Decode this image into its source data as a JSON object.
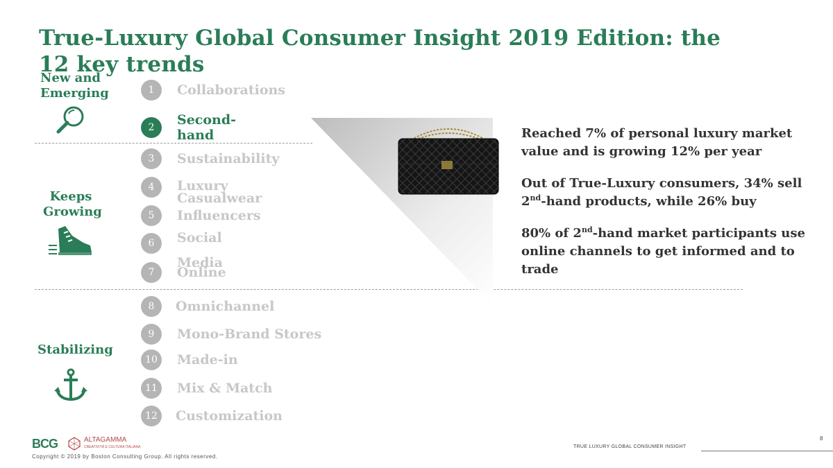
{
  "title": "True-Luxury Global Consumer Insight 2019 Edition: the 12 key trends",
  "categories": [
    {
      "label": "New and Emerging",
      "icon": "magnifier-icon"
    },
    {
      "label": "Keeps Growing",
      "icon": "sneaker-icon"
    },
    {
      "label": "Stabilizing",
      "icon": "anchor-icon"
    }
  ],
  "trends": [
    {
      "num": "1",
      "label": "Collaborations"
    },
    {
      "num": "2",
      "label": "Second-hand",
      "active": true
    },
    {
      "num": "3",
      "label": "Sustainability"
    },
    {
      "num": "4",
      "label": "Luxury Casualwear"
    },
    {
      "num": "5",
      "label": "Influencers"
    },
    {
      "num": "6",
      "label": "Social Media"
    },
    {
      "num": "7",
      "label": "Online"
    },
    {
      "num": "8",
      "label": "Omnichannel"
    },
    {
      "num": "9",
      "label": "Mono-Brand Stores"
    },
    {
      "num": "10",
      "label": "Made-in"
    },
    {
      "num": "11",
      "label": "Mix & Match"
    },
    {
      "num": "12",
      "label": "Customization"
    }
  ],
  "facts": {
    "f1": "Reached 7% of personal luxury market value and is growing 12% per year",
    "f2a": "Out of True-Luxury consumers, 34% sell 2",
    "f2sup": "nd",
    "f2b": "-hand products, while 26% buy",
    "f3a": "80% of 2",
    "f3sup": "nd",
    "f3b": "-hand market participants use online channels to get informed and to trade"
  },
  "footer": {
    "bcg": "BCG",
    "altagamma": "ALTAGAMMA",
    "altagamma_sub": "CREATIVITÀ E CULTURA ITALIANA",
    "copyright": "Copyright © 2019 by Boston Consulting Group. All rights reserved.",
    "right_text": "TRUE LUXURY GLOBAL CONSUMER INSIGHT",
    "page": "8"
  },
  "colors": {
    "accent": "#2a7d57",
    "inactive": "#c7c7c7",
    "badge_inactive": "#b5b5b5"
  }
}
